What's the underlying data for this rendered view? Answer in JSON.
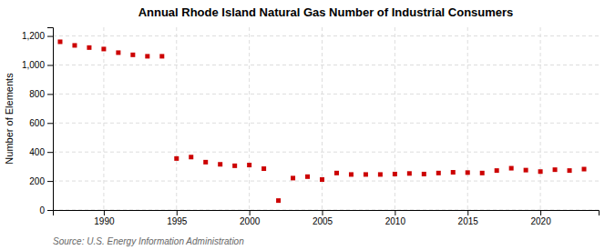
{
  "chart_data": {
    "type": "scatter",
    "title": "Annual Rhode Island Natural Gas Number of Industrial Consumers",
    "ylabel": "Number of Elements",
    "source": "Source: U.S. Energy Information Administration",
    "x": [
      1987,
      1988,
      1989,
      1990,
      1991,
      1992,
      1993,
      1994,
      1995,
      1996,
      1997,
      1998,
      1999,
      2000,
      2001,
      2002,
      2003,
      2004,
      2005,
      2006,
      2007,
      2008,
      2009,
      2010,
      2011,
      2012,
      2013,
      2014,
      2015,
      2016,
      2017,
      2018,
      2019,
      2020,
      2021,
      2022,
      2023
    ],
    "values": [
      1160,
      1135,
      1120,
      1110,
      1085,
      1070,
      1060,
      1060,
      355,
      365,
      330,
      315,
      305,
      310,
      285,
      65,
      220,
      230,
      210,
      255,
      245,
      245,
      245,
      248,
      252,
      248,
      255,
      260,
      258,
      255,
      272,
      288,
      275,
      265,
      278,
      272,
      282
    ],
    "color": "#cc0000",
    "marker": "square",
    "xlim": [
      1986.5,
      2024
    ],
    "xticks": [
      1990,
      1995,
      2000,
      2005,
      2010,
      2015,
      2020
    ],
    "ylim": [
      0,
      1260
    ],
    "yticks": [
      0,
      200,
      400,
      600,
      800,
      {
        "value": 1000,
        "label": "1,000"
      },
      {
        "value": 1200,
        "label": "1,200"
      }
    ],
    "grid": true
  }
}
